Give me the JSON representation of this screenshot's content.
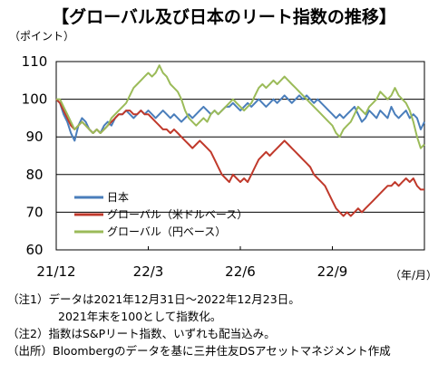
{
  "title": "【グローバル及び日本のリート指数の推移】",
  "chart_data": {
    "type": "line",
    "title": "【グローバル及び日本のリート指数の推移】",
    "y_unit": "（ポイント）",
    "x_unit": "（年/月）",
    "ylim": [
      60,
      110
    ],
    "yticks": [
      60,
      70,
      80,
      90,
      100,
      110
    ],
    "x_ticks": [
      {
        "label": "21/12",
        "t": 0
      },
      {
        "label": "22/3",
        "t": 0.25
      },
      {
        "label": "22/6",
        "t": 0.5
      },
      {
        "label": "22/9",
        "t": 0.75
      }
    ],
    "grid": "horizontal",
    "legend_position": "bottom-left",
    "series": [
      {
        "name": "日本",
        "color": "#4a7ebb",
        "points": [
          [
            0,
            100
          ],
          [
            0.01,
            99
          ],
          [
            0.02,
            96
          ],
          [
            0.03,
            94
          ],
          [
            0.04,
            91
          ],
          [
            0.05,
            89
          ],
          [
            0.06,
            93
          ],
          [
            0.07,
            95
          ],
          [
            0.08,
            94
          ],
          [
            0.09,
            92
          ],
          [
            0.1,
            91
          ],
          [
            0.11,
            92
          ],
          [
            0.12,
            91
          ],
          [
            0.13,
            93
          ],
          [
            0.14,
            94
          ],
          [
            0.15,
            93
          ],
          [
            0.16,
            95
          ],
          [
            0.17,
            96
          ],
          [
            0.18,
            96
          ],
          [
            0.19,
            97
          ],
          [
            0.2,
            96
          ],
          [
            0.21,
            95
          ],
          [
            0.22,
            96
          ],
          [
            0.23,
            97
          ],
          [
            0.24,
            96
          ],
          [
            0.25,
            97
          ],
          [
            0.26,
            96
          ],
          [
            0.27,
            95
          ],
          [
            0.28,
            96
          ],
          [
            0.29,
            97
          ],
          [
            0.3,
            96
          ],
          [
            0.31,
            95
          ],
          [
            0.32,
            96
          ],
          [
            0.33,
            95
          ],
          [
            0.34,
            94
          ],
          [
            0.35,
            95
          ],
          [
            0.36,
            96
          ],
          [
            0.37,
            95
          ],
          [
            0.38,
            96
          ],
          [
            0.39,
            97
          ],
          [
            0.4,
            98
          ],
          [
            0.41,
            97
          ],
          [
            0.42,
            96
          ],
          [
            0.43,
            97
          ],
          [
            0.44,
            96
          ],
          [
            0.45,
            97
          ],
          [
            0.46,
            98
          ],
          [
            0.47,
            98
          ],
          [
            0.48,
            99
          ],
          [
            0.49,
            98
          ],
          [
            0.5,
            97
          ],
          [
            0.51,
            98
          ],
          [
            0.52,
            99
          ],
          [
            0.53,
            98
          ],
          [
            0.54,
            99
          ],
          [
            0.55,
            100
          ],
          [
            0.56,
            99
          ],
          [
            0.57,
            98
          ],
          [
            0.58,
            99
          ],
          [
            0.59,
            100
          ],
          [
            0.6,
            99
          ],
          [
            0.61,
            100
          ],
          [
            0.62,
            101
          ],
          [
            0.63,
            100
          ],
          [
            0.64,
            99
          ],
          [
            0.65,
            100
          ],
          [
            0.66,
            101
          ],
          [
            0.67,
            100
          ],
          [
            0.68,
            101
          ],
          [
            0.69,
            100
          ],
          [
            0.7,
            99
          ],
          [
            0.71,
            100
          ],
          [
            0.72,
            99
          ],
          [
            0.73,
            98
          ],
          [
            0.74,
            97
          ],
          [
            0.75,
            96
          ],
          [
            0.76,
            95
          ],
          [
            0.77,
            96
          ],
          [
            0.78,
            95
          ],
          [
            0.79,
            96
          ],
          [
            0.8,
            97
          ],
          [
            0.81,
            98
          ],
          [
            0.82,
            96
          ],
          [
            0.83,
            94
          ],
          [
            0.84,
            95
          ],
          [
            0.85,
            97
          ],
          [
            0.86,
            96
          ],
          [
            0.87,
            95
          ],
          [
            0.88,
            97
          ],
          [
            0.89,
            96
          ],
          [
            0.9,
            95
          ],
          [
            0.91,
            98
          ],
          [
            0.92,
            96
          ],
          [
            0.93,
            95
          ],
          [
            0.94,
            96
          ],
          [
            0.95,
            97
          ],
          [
            0.96,
            95
          ],
          [
            0.97,
            96
          ],
          [
            0.98,
            95
          ],
          [
            0.99,
            92
          ],
          [
            1.0,
            94
          ]
        ]
      },
      {
        "name": "グローバル（米ドルベース）",
        "color": "#c0392b",
        "points": [
          [
            0,
            100
          ],
          [
            0.01,
            99
          ],
          [
            0.02,
            97
          ],
          [
            0.03,
            95
          ],
          [
            0.04,
            93
          ],
          [
            0.05,
            92
          ],
          [
            0.06,
            93
          ],
          [
            0.07,
            94
          ],
          [
            0.08,
            93
          ],
          [
            0.09,
            92
          ],
          [
            0.1,
            91
          ],
          [
            0.11,
            92
          ],
          [
            0.12,
            91
          ],
          [
            0.13,
            92
          ],
          [
            0.14,
            93
          ],
          [
            0.15,
            94
          ],
          [
            0.16,
            95
          ],
          [
            0.17,
            96
          ],
          [
            0.18,
            96
          ],
          [
            0.19,
            97
          ],
          [
            0.2,
            97
          ],
          [
            0.21,
            96
          ],
          [
            0.22,
            96
          ],
          [
            0.23,
            97
          ],
          [
            0.24,
            96
          ],
          [
            0.25,
            96
          ],
          [
            0.26,
            95
          ],
          [
            0.27,
            94
          ],
          [
            0.28,
            93
          ],
          [
            0.29,
            92
          ],
          [
            0.3,
            92
          ],
          [
            0.31,
            91
          ],
          [
            0.32,
            92
          ],
          [
            0.33,
            91
          ],
          [
            0.34,
            90
          ],
          [
            0.35,
            89
          ],
          [
            0.36,
            88
          ],
          [
            0.37,
            87
          ],
          [
            0.38,
            88
          ],
          [
            0.39,
            89
          ],
          [
            0.4,
            88
          ],
          [
            0.41,
            87
          ],
          [
            0.42,
            86
          ],
          [
            0.43,
            84
          ],
          [
            0.44,
            82
          ],
          [
            0.45,
            80
          ],
          [
            0.46,
            79
          ],
          [
            0.47,
            78
          ],
          [
            0.48,
            80
          ],
          [
            0.49,
            79
          ],
          [
            0.5,
            78
          ],
          [
            0.51,
            79
          ],
          [
            0.52,
            78
          ],
          [
            0.53,
            80
          ],
          [
            0.54,
            82
          ],
          [
            0.55,
            84
          ],
          [
            0.56,
            85
          ],
          [
            0.57,
            86
          ],
          [
            0.58,
            85
          ],
          [
            0.59,
            86
          ],
          [
            0.6,
            87
          ],
          [
            0.61,
            88
          ],
          [
            0.62,
            89
          ],
          [
            0.63,
            88
          ],
          [
            0.64,
            87
          ],
          [
            0.65,
            86
          ],
          [
            0.66,
            85
          ],
          [
            0.67,
            84
          ],
          [
            0.68,
            83
          ],
          [
            0.69,
            82
          ],
          [
            0.7,
            80
          ],
          [
            0.71,
            79
          ],
          [
            0.72,
            78
          ],
          [
            0.73,
            77
          ],
          [
            0.74,
            75
          ],
          [
            0.75,
            73
          ],
          [
            0.76,
            71
          ],
          [
            0.77,
            70
          ],
          [
            0.78,
            69
          ],
          [
            0.79,
            70
          ],
          [
            0.8,
            69
          ],
          [
            0.81,
            70
          ],
          [
            0.82,
            71
          ],
          [
            0.83,
            70
          ],
          [
            0.84,
            71
          ],
          [
            0.85,
            72
          ],
          [
            0.86,
            73
          ],
          [
            0.87,
            74
          ],
          [
            0.88,
            75
          ],
          [
            0.89,
            76
          ],
          [
            0.9,
            77
          ],
          [
            0.91,
            77
          ],
          [
            0.92,
            78
          ],
          [
            0.93,
            77
          ],
          [
            0.94,
            78
          ],
          [
            0.95,
            79
          ],
          [
            0.96,
            78
          ],
          [
            0.97,
            79
          ],
          [
            0.98,
            77
          ],
          [
            0.99,
            76
          ],
          [
            1.0,
            76
          ]
        ]
      },
      {
        "name": "グローバル（円ベース）",
        "color": "#9bbb59",
        "points": [
          [
            0,
            100
          ],
          [
            0.01,
            100
          ],
          [
            0.02,
            98
          ],
          [
            0.03,
            96
          ],
          [
            0.04,
            94
          ],
          [
            0.05,
            92
          ],
          [
            0.06,
            93
          ],
          [
            0.07,
            94
          ],
          [
            0.08,
            93
          ],
          [
            0.09,
            92
          ],
          [
            0.1,
            91
          ],
          [
            0.11,
            92
          ],
          [
            0.12,
            91
          ],
          [
            0.13,
            92
          ],
          [
            0.14,
            93
          ],
          [
            0.15,
            95
          ],
          [
            0.16,
            96
          ],
          [
            0.17,
            97
          ],
          [
            0.18,
            98
          ],
          [
            0.19,
            99
          ],
          [
            0.2,
            101
          ],
          [
            0.21,
            103
          ],
          [
            0.22,
            104
          ],
          [
            0.23,
            105
          ],
          [
            0.24,
            106
          ],
          [
            0.25,
            107
          ],
          [
            0.26,
            106
          ],
          [
            0.27,
            107
          ],
          [
            0.28,
            109
          ],
          [
            0.29,
            107
          ],
          [
            0.3,
            106
          ],
          [
            0.31,
            104
          ],
          [
            0.32,
            103
          ],
          [
            0.33,
            102
          ],
          [
            0.34,
            100
          ],
          [
            0.35,
            97
          ],
          [
            0.36,
            95
          ],
          [
            0.37,
            94
          ],
          [
            0.38,
            93
          ],
          [
            0.39,
            94
          ],
          [
            0.4,
            95
          ],
          [
            0.41,
            94
          ],
          [
            0.42,
            96
          ],
          [
            0.43,
            97
          ],
          [
            0.44,
            96
          ],
          [
            0.45,
            97
          ],
          [
            0.46,
            98
          ],
          [
            0.47,
            99
          ],
          [
            0.48,
            100
          ],
          [
            0.49,
            99
          ],
          [
            0.5,
            98
          ],
          [
            0.51,
            97
          ],
          [
            0.52,
            98
          ],
          [
            0.53,
            99
          ],
          [
            0.54,
            101
          ],
          [
            0.55,
            103
          ],
          [
            0.56,
            104
          ],
          [
            0.57,
            103
          ],
          [
            0.58,
            104
          ],
          [
            0.59,
            105
          ],
          [
            0.6,
            104
          ],
          [
            0.61,
            105
          ],
          [
            0.62,
            106
          ],
          [
            0.63,
            105
          ],
          [
            0.64,
            104
          ],
          [
            0.65,
            103
          ],
          [
            0.66,
            102
          ],
          [
            0.67,
            101
          ],
          [
            0.68,
            100
          ],
          [
            0.69,
            99
          ],
          [
            0.7,
            98
          ],
          [
            0.71,
            97
          ],
          [
            0.72,
            96
          ],
          [
            0.73,
            95
          ],
          [
            0.74,
            94
          ],
          [
            0.75,
            93
          ],
          [
            0.76,
            91
          ],
          [
            0.77,
            90
          ],
          [
            0.78,
            92
          ],
          [
            0.79,
            93
          ],
          [
            0.8,
            94
          ],
          [
            0.81,
            96
          ],
          [
            0.82,
            98
          ],
          [
            0.83,
            97
          ],
          [
            0.84,
            96
          ],
          [
            0.85,
            98
          ],
          [
            0.86,
            99
          ],
          [
            0.87,
            100
          ],
          [
            0.88,
            102
          ],
          [
            0.89,
            101
          ],
          [
            0.9,
            100
          ],
          [
            0.91,
            101
          ],
          [
            0.92,
            103
          ],
          [
            0.93,
            101
          ],
          [
            0.94,
            100
          ],
          [
            0.95,
            99
          ],
          [
            0.96,
            97
          ],
          [
            0.97,
            94
          ],
          [
            0.98,
            90
          ],
          [
            0.99,
            87
          ],
          [
            1.0,
            88
          ]
        ]
      }
    ]
  },
  "notes": [
    "（注1）データは2021年12月31日～2022年12月23日。",
    "2021年末を100として指数化。",
    "（注2）指数はS&Pリート指数、いずれも配当込み。",
    "（出所）Bloombergのデータを基に三井住友DSアセットマネジメント作成"
  ]
}
